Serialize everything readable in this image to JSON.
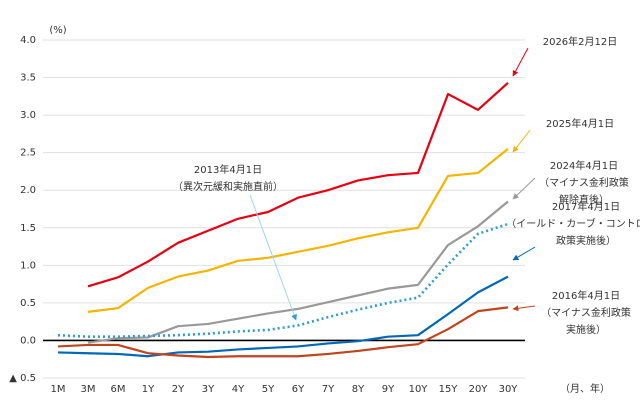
{
  "chart_data": {
    "type": "line",
    "y_unit_label": "(%)",
    "x_unit_label": "（月、年）",
    "categories": [
      "1M",
      "3M",
      "6M",
      "1Y",
      "2Y",
      "3Y",
      "4Y",
      "5Y",
      "6Y",
      "7Y",
      "8Y",
      "9Y",
      "10Y",
      "15Y",
      "20Y",
      "30Y"
    ],
    "ylim": [
      -0.5,
      4.0
    ],
    "yticks": [
      {
        "value": 4.0,
        "label": "4.0"
      },
      {
        "value": 3.5,
        "label": "3.5"
      },
      {
        "value": 3.0,
        "label": "3.0"
      },
      {
        "value": 2.5,
        "label": "2.5"
      },
      {
        "value": 2.0,
        "label": "2.0"
      },
      {
        "value": 1.5,
        "label": "1.5"
      },
      {
        "value": 1.0,
        "label": "1.0"
      },
      {
        "value": 0.5,
        "label": "0.5"
      },
      {
        "value": 0.0,
        "label": "0.0"
      },
      {
        "value": -0.5,
        "label": "▲ 0.5"
      }
    ],
    "grid": true,
    "series": [
      {
        "name": "2026年2月12日",
        "color": "#e60012",
        "note": [],
        "values": [
          null,
          0.72,
          0.84,
          1.05,
          1.3,
          1.46,
          1.62,
          1.71,
          1.9,
          2.0,
          2.13,
          2.2,
          2.23,
          3.28,
          3.07,
          3.43
        ]
      },
      {
        "name": "2025年4月1日",
        "color": "#f5b400",
        "note": [],
        "values": [
          null,
          0.38,
          0.43,
          0.7,
          0.85,
          0.93,
          1.06,
          1.1,
          1.18,
          1.26,
          1.36,
          1.44,
          1.5,
          2.19,
          2.23,
          2.55
        ]
      },
      {
        "name": "2024年4月1日",
        "color": "#999999",
        "note": [
          "（マイナス金利政策",
          "解除直後）"
        ],
        "values": [
          null,
          -0.03,
          0.03,
          0.04,
          0.19,
          0.22,
          0.29,
          0.36,
          0.42,
          0.51,
          0.6,
          0.69,
          0.74,
          1.27,
          1.52,
          1.85
        ]
      },
      {
        "name": "2013年4月1日",
        "color": "#2e9bd6",
        "dotted": true,
        "note": [
          "（異次元緩和実施直前）"
        ],
        "values": [
          0.07,
          0.05,
          0.05,
          0.06,
          0.07,
          0.09,
          0.12,
          0.14,
          0.2,
          0.31,
          0.41,
          0.5,
          0.57,
          1.01,
          1.42,
          1.55
        ]
      },
      {
        "name": "2017年4月1日",
        "color": "#0068b7",
        "note": [
          "（イールド・カーブ・コントロール",
          "政策実施後）"
        ],
        "values": [
          -0.16,
          -0.17,
          -0.18,
          -0.21,
          -0.16,
          -0.15,
          -0.12,
          -0.1,
          -0.08,
          -0.04,
          -0.01,
          0.05,
          0.07,
          0.35,
          0.64,
          0.85
        ]
      },
      {
        "name": "2016年4月1日",
        "color": "#c0441c",
        "note": [
          "（マイナス金利政策",
          "実施後）"
        ],
        "values": [
          -0.08,
          -0.06,
          -0.06,
          -0.17,
          -0.2,
          -0.22,
          -0.21,
          -0.21,
          -0.21,
          -0.18,
          -0.14,
          -0.09,
          -0.05,
          0.15,
          0.39,
          0.44
        ]
      }
    ]
  }
}
